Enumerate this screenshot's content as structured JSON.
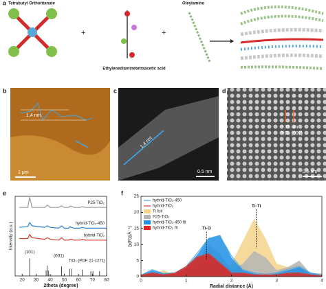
{
  "panels": {
    "a": {
      "label": "a",
      "reactant1": "Tetrabutyl Orthotitanate",
      "reactant2": "Ethylenediaminetetraacetic acid",
      "reactant3": "Oleylamine"
    },
    "b": {
      "label": "b",
      "height": "1.4 nm",
      "scale": "1 μm"
    },
    "c": {
      "label": "c",
      "width": "1.4 nm",
      "scale": "0.5 nm"
    },
    "d": {
      "label": "d",
      "spacing": "0.35 nm",
      "plane": "TiO₂ (001)",
      "scale": "0.5 nm"
    },
    "e": {
      "label": "e"
    },
    "f": {
      "label": "f"
    }
  },
  "chart_data": [
    {
      "type": "line",
      "xlabel": "2theta (degree)",
      "ylabel": "Intensity (a.u.)",
      "xlim": [
        15,
        80
      ],
      "xticks": [
        20,
        30,
        40,
        50,
        60,
        70,
        80
      ],
      "ylim": [
        0,
        10
      ],
      "x": [
        18,
        24,
        25.3,
        27,
        36,
        37.8,
        40,
        46,
        48,
        50,
        53,
        54,
        55,
        57,
        61,
        62.7,
        65,
        68,
        68.8,
        70,
        74,
        75,
        76,
        80
      ],
      "series": [
        {
          "name": "P25-TiO₂",
          "color": "#999999",
          "values": [
            8.6,
            8.6,
            9.9,
            8.6,
            8.6,
            8.9,
            8.6,
            8.6,
            8.8,
            8.6,
            8.6,
            8.75,
            8.75,
            8.6,
            8.6,
            8.7,
            8.6,
            8.6,
            8.65,
            8.6,
            8.6,
            8.65,
            8.6,
            8.6
          ]
        },
        {
          "name": "hybrid-TiO₂-450",
          "color": "#2a7fd4",
          "values": [
            6.1,
            6.2,
            6.7,
            6.3,
            6.1,
            6.3,
            6.1,
            6.0,
            6.3,
            6.0,
            6.0,
            6.2,
            6.1,
            6.0,
            6.0,
            6.1,
            6.0,
            6.0,
            6.0,
            6.0,
            6.0,
            6.0,
            6.0,
            6.0
          ]
        },
        {
          "name": "hybrid-TiO₂",
          "color": "#d93a2b",
          "values": [
            4.7,
            4.7,
            5.2,
            4.8,
            4.6,
            4.8,
            4.6,
            4.5,
            4.8,
            4.5,
            4.5,
            4.6,
            4.6,
            4.5,
            4.5,
            4.6,
            4.5,
            4.5,
            4.5,
            4.5,
            4.5,
            4.5,
            4.5,
            4.5
          ]
        }
      ],
      "reference": {
        "name": "TiO₂ (PDF  21-1271)",
        "color": "#222222",
        "x": [
          25.3,
          37.0,
          37.8,
          38.6,
          48.0,
          53.9,
          55.1,
          62.7,
          68.8,
          70.3,
          75.0
        ],
        "values": [
          2.2,
          0.7,
          1.3,
          0.7,
          1.2,
          0.9,
          0.9,
          0.8,
          0.6,
          0.6,
          0.6
        ]
      },
      "annotations": [
        {
          "text": "(101)",
          "x": 25.3,
          "y": 3.0
        },
        {
          "text": "(001)",
          "x": 46,
          "y": 2.5
        }
      ]
    },
    {
      "type": "area",
      "xlabel": "Radial distance (Å)",
      "ylabel": "|χ(R)|(Å⁻⁴)",
      "xlim": [
        0,
        4
      ],
      "xticks": [
        0,
        1,
        2,
        3,
        4
      ],
      "ylim": [
        0,
        25
      ],
      "yticks": [
        0,
        5,
        10,
        15,
        20,
        25
      ],
      "x": [
        0,
        0.25,
        0.5,
        0.75,
        1,
        1.25,
        1.5,
        1.75,
        2,
        2.25,
        2.5,
        2.75,
        3,
        3.25,
        3.5,
        3.75,
        4
      ],
      "series": [
        {
          "name": "hybrid-TiO₂-450",
          "color": "#4aa8e0",
          "fill": false,
          "values": [
            0.5,
            2.2,
            1,
            1.2,
            3.2,
            7.5,
            12,
            12.5,
            6.5,
            2.2,
            1.2,
            0.8,
            1.2,
            2.3,
            3.2,
            1.2,
            0.5
          ]
        },
        {
          "name": "hybrid-TiO₂",
          "color": "#d93a2b",
          "fill": false,
          "values": [
            0.4,
            1.2,
            0.6,
            1.1,
            3.2,
            6.2,
            7.2,
            4.2,
            1.2,
            1.1,
            0.6,
            0.6,
            0.6,
            1.1,
            1.2,
            0.6,
            0.3
          ]
        },
        {
          "name": "Ti foil",
          "color": "#f5d48a",
          "fill": true,
          "values": [
            0.5,
            1,
            2,
            0.5,
            1,
            2,
            1.5,
            1,
            4,
            11,
            18,
            12,
            4,
            3,
            4,
            1,
            0.5
          ]
        },
        {
          "name": "P25-TiO₂",
          "color": "#b5b5b5",
          "fill": true,
          "values": [
            0.5,
            1,
            0.5,
            1,
            2,
            5,
            10,
            7,
            2,
            4,
            8,
            6,
            2,
            3,
            5,
            1,
            1
          ]
        },
        {
          "name": "hybrid-TiO₂-450 fit",
          "color": "#1e90e6",
          "fill": true,
          "values": [
            0.5,
            2,
            1,
            1,
            3,
            7,
            12,
            13,
            6,
            2,
            1,
            0.5,
            1,
            2,
            3,
            1,
            0.5
          ]
        },
        {
          "name": "hybrid-TiO₂ fit",
          "color": "#e0231b",
          "fill": true,
          "values": [
            0.5,
            1,
            0.5,
            1,
            3,
            6,
            7,
            4,
            1,
            1,
            0.5,
            0.5,
            0.5,
            1,
            1,
            0.5,
            0.2
          ]
        }
      ],
      "annotations": [
        {
          "text": "Ti-O",
          "x": 1.45,
          "y": 15
        },
        {
          "text": "Ti-Ti",
          "x": 2.55,
          "y": 22
        }
      ]
    }
  ]
}
